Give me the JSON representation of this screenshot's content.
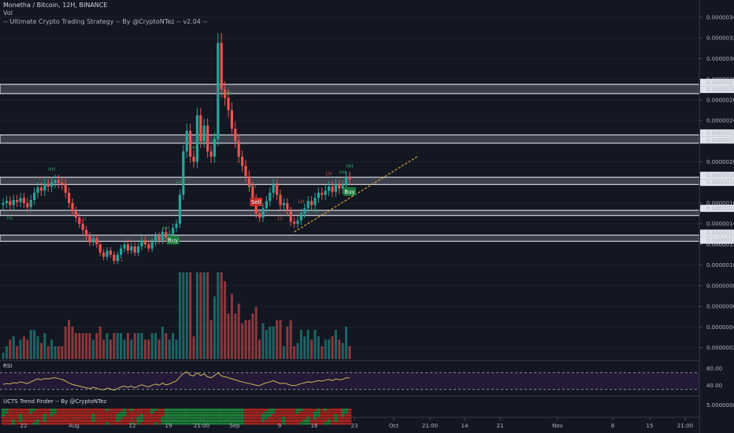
{
  "header": {
    "symbol_line": "Monetha / Bitcoin, 12H, BINANCE",
    "vol_label": "Vol",
    "strategy_line": "-- Ultimate Crypto Trading Strategy -- By @CryptoNTez -- v2.04 --"
  },
  "rsi_label": "RSI",
  "trend_label": "UCTS Trend Finder -- By @CryptoNTez",
  "colors": {
    "background": "#131722",
    "up": "#26a69a",
    "down": "#ef5350",
    "zone_fill": "#5d606b",
    "rsi_line": "#c9b458",
    "trendline": "#f0c33c",
    "label_green": "#1b7a3b",
    "label_red": "#c62828"
  },
  "chart_data": {
    "type": "candlestick",
    "title": "Monetha / Bitcoin, 12H, BINANCE",
    "price_ticks": [
      "0.00000340",
      "0.00000320",
      "0.00000300",
      "0.00000280",
      "0.00000260",
      "0.00000240",
      "0.00000220",
      "0.00000200",
      "0.00000180",
      "0.00000160",
      "0.00000140",
      "0.00000120",
      "0.00000100",
      "0.00000080",
      "0.00000060",
      "0.00000040",
      "0.00000020"
    ],
    "price_range": [
      9e-08,
      3.46e-06
    ],
    "zone_labels": [
      {
        "label": "0.00000274",
        "low": 2.66e-06,
        "high": 2.75e-06
      },
      {
        "label": "0.00000267",
        "low": 2.66e-06,
        "high": 2.75e-06
      },
      {
        "label": "0.00000223",
        "low": 2.18e-06,
        "high": 2.26e-06
      },
      {
        "label": "0.00000218",
        "low": 2.18e-06,
        "high": 2.26e-06
      },
      {
        "label": "0.00000184",
        "low": 1.78e-06,
        "high": 1.85e-06
      },
      {
        "label": "0.00000180",
        "low": 1.78e-06,
        "high": 1.85e-06
      },
      {
        "label": "0.00000152",
        "low": 1.48e-06,
        "high": 1.53e-06
      },
      {
        "label": "0.00000129",
        "low": 1.23e-06,
        "high": 1.29e-06
      },
      {
        "label": "0.00000123",
        "low": 1.23e-06,
        "high": 1.29e-06
      }
    ],
    "time_ticks": [
      "22",
      "Aug",
      "12",
      "19",
      "21:00",
      "Sep",
      "9",
      "16",
      "23",
      "Oct",
      "21:00",
      "14",
      "21",
      "Nov",
      "8",
      "15",
      "21:00"
    ],
    "candles_close": [
      1.6e-06,
      1.62e-06,
      1.58e-06,
      1.63e-06,
      1.61e-06,
      1.65e-06,
      1.6e-06,
      1.56e-06,
      1.63e-06,
      1.7e-06,
      1.75e-06,
      1.72e-06,
      1.78e-06,
      1.76e-06,
      1.8e-06,
      1.82e-06,
      1.8e-06,
      1.78e-06,
      1.7e-06,
      1.6e-06,
      1.52e-06,
      1.46e-06,
      1.4e-06,
      1.34e-06,
      1.28e-06,
      1.22e-06,
      1.26e-06,
      1.2e-06,
      1.12e-06,
      1.08e-06,
      1.14e-06,
      1.1e-06,
      1.04e-06,
      1.1e-06,
      1.16e-06,
      1.2e-06,
      1.14e-06,
      1.18e-06,
      1.12e-06,
      1.18e-06,
      1.24e-06,
      1.2e-06,
      1.16e-06,
      1.22e-06,
      1.28e-06,
      1.24e-06,
      1.32e-06,
      1.26e-06,
      1.3e-06,
      1.36e-06,
      1.4e-06,
      1.68e-06,
      2.1e-06,
      2.3e-06,
      2.05e-06,
      2e-06,
      2.45e-06,
      2.2e-06,
      2.35e-06,
      2.1e-06,
      2.05e-06,
      2.22e-06,
      3.15e-06,
      2.7e-06,
      2.62e-06,
      2.5e-06,
      2.32e-06,
      2.2e-06,
      2.05e-06,
      1.96e-06,
      1.86e-06,
      1.76e-06,
      1.64e-06,
      1.5e-06,
      1.46e-06,
      1.55e-06,
      1.62e-06,
      1.7e-06,
      1.78e-06,
      1.68e-06,
      1.58e-06,
      1.6e-06,
      1.52e-06,
      1.42e-06,
      1.4e-06,
      1.43e-06,
      1.5e-06,
      1.55e-06,
      1.62e-06,
      1.58e-06,
      1.65e-06,
      1.7e-06,
      1.68e-06,
      1.72e-06,
      1.76e-06,
      1.71e-06,
      1.78e-06,
      1.74e-06,
      1.77e-06,
      1.85e-06,
      1.83e-06
    ],
    "signals": [
      {
        "text": "HH",
        "type": "high",
        "index": 14
      },
      {
        "text": "LH",
        "type": "high",
        "index": 11
      },
      {
        "text": "HL",
        "type": "low",
        "index": 2
      },
      {
        "text": "LL",
        "type": "low",
        "index": 34
      },
      {
        "text": "LH",
        "type": "high",
        "index": 23
      },
      {
        "text": "LH",
        "type": "high",
        "index": 36
      },
      {
        "text": "HH",
        "type": "high",
        "index": 47
      },
      {
        "text": "HH",
        "type": "high",
        "index": 51
      },
      {
        "text": "HH",
        "type": "high",
        "index": 55
      },
      {
        "text": "HH",
        "type": "high",
        "index": 65
      },
      {
        "text": "HH",
        "type": "high",
        "index": 72
      },
      {
        "text": "LH",
        "type": "high",
        "index": 86
      },
      {
        "text": "LL",
        "type": "low",
        "index": 80
      },
      {
        "text": "HL",
        "type": "low",
        "index": 90
      },
      {
        "text": "LH",
        "type": "high",
        "index": 94
      },
      {
        "text": "HH",
        "type": "high",
        "index": 98
      },
      {
        "text": "HH",
        "type": "high",
        "index": 101
      }
    ],
    "trade_labels": [
      {
        "text": "Sell",
        "index": 73
      },
      {
        "text": "Buy",
        "index": 49
      },
      {
        "text": "Buy",
        "index": 107
      }
    ],
    "rsi": {
      "ticks": [
        "80.00",
        "40.00"
      ],
      "range": [
        20,
        95
      ],
      "upper": 70,
      "lower": 30,
      "values": [
        42,
        44,
        43,
        46,
        45,
        48,
        46,
        44,
        48,
        52,
        55,
        53,
        56,
        55,
        57,
        58,
        56,
        54,
        50,
        45,
        42,
        40,
        38,
        36,
        34,
        32,
        35,
        33,
        30,
        29,
        33,
        31,
        28,
        32,
        36,
        38,
        35,
        38,
        34,
        38,
        41,
        38,
        36,
        40,
        43,
        40,
        45,
        41,
        43,
        47,
        50,
        60,
        68,
        72,
        64,
        62,
        70,
        63,
        67,
        60,
        58,
        63,
        70,
        62,
        60,
        58,
        55,
        53,
        50,
        48,
        46,
        44,
        42,
        40,
        39,
        43,
        46,
        48,
        51,
        47,
        44,
        45,
        43,
        40,
        39,
        41,
        44,
        46,
        48,
        47,
        49,
        51,
        50,
        52,
        54,
        51,
        55,
        53,
        54,
        58,
        57
      ]
    },
    "trend_finder_ticks": [
      "5.00000000"
    ]
  }
}
